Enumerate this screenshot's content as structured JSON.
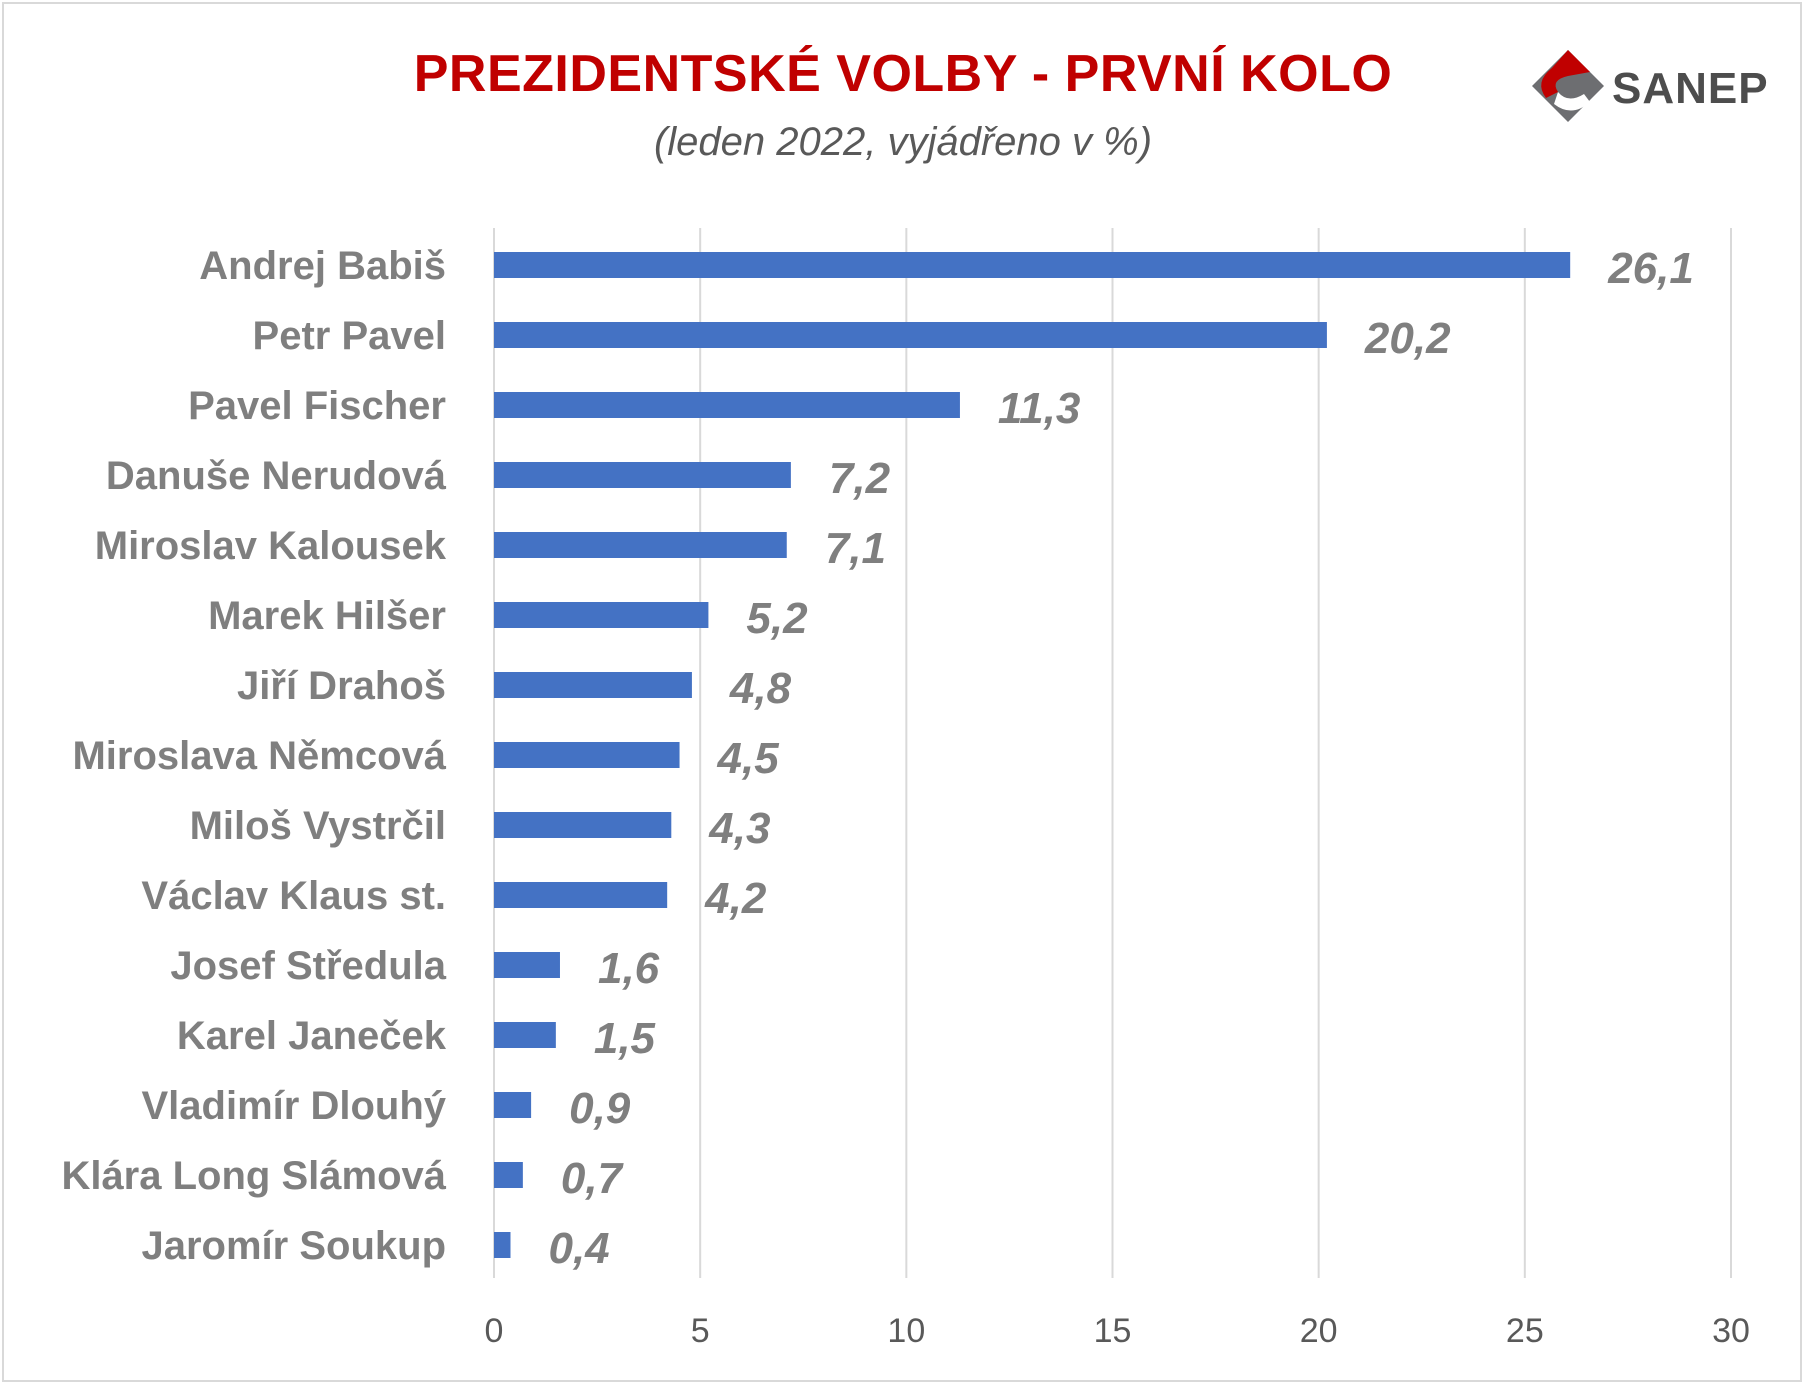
{
  "logo": {
    "text": "SANEP",
    "icon": "sanep-logo-icon"
  },
  "colors": {
    "bar": "#4472c4",
    "title": "#c00000",
    "label": "#7f7f7f",
    "grid": "#d9d9d9"
  },
  "chart_data": {
    "type": "bar",
    "orientation": "horizontal",
    "title": "PREZIDENTSKÉ VOLBY - PRVNÍ KOLO",
    "subtitle": "(leden 2022, vyjádřeno v %)",
    "categories": [
      "Andrej Babiš",
      "Petr Pavel",
      "Pavel Fischer",
      "Danuše Nerudová",
      "Miroslav Kalousek",
      "Marek Hilšer",
      "Jiří Drahoš",
      "Miroslava Němcová",
      "Miloš Vystrčil",
      "Václav Klaus st.",
      "Josef Středula",
      "Karel Janeček",
      "Vladimír Dlouhý",
      "Klára Long Slámová",
      "Jaromír Soukup"
    ],
    "values": [
      26.1,
      20.2,
      11.3,
      7.2,
      7.1,
      5.2,
      4.8,
      4.5,
      4.3,
      4.2,
      1.6,
      1.5,
      0.9,
      0.7,
      0.4
    ],
    "value_labels": [
      "26,1",
      "20,2",
      "11,3",
      "7,2",
      "7,1",
      "5,2",
      "4,8",
      "4,5",
      "4,3",
      "4,2",
      "1,6",
      "1,5",
      "0,9",
      "0,7",
      "0,4"
    ],
    "xlim": [
      0,
      30
    ],
    "xticks": [
      "0",
      "5",
      "10",
      "15",
      "20",
      "25",
      "30"
    ],
    "grid": "vertical",
    "legend": "none"
  }
}
